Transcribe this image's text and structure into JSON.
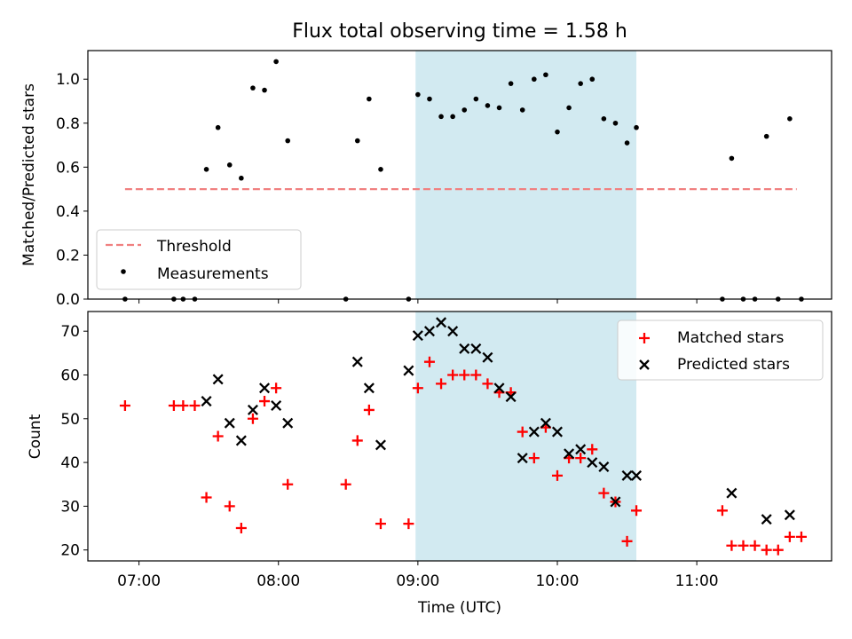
{
  "title": "Flux total observing time = 1.58 h",
  "colors": {
    "threshold": "#f08080",
    "measurement": "#000000",
    "matched": "#ff0000",
    "predicted": "#000000",
    "shade": "#add8e6"
  },
  "chart_data": [
    {
      "type": "scatter",
      "ylabel": "Matched/Predicted stars",
      "ylim": [
        0,
        1.13
      ],
      "yticks": [
        0.0,
        0.2,
        0.4,
        0.6,
        0.8,
        1.0
      ],
      "ytick_labels": [
        "0.0",
        "0.2",
        "0.4",
        "0.6",
        "0.8",
        "1.0"
      ],
      "shaded_interval": [
        "08:59",
        "10:34"
      ],
      "legend": {
        "position": "lower-left",
        "entries": [
          "Threshold",
          "Measurements"
        ]
      },
      "series": [
        {
          "name": "Threshold",
          "style": "dashed-line",
          "x": [
            "06:54",
            "11:43"
          ],
          "y": [
            0.5,
            0.5
          ]
        },
        {
          "name": "Measurements",
          "style": "dot",
          "x": [
            "06:54",
            "07:15",
            "07:19",
            "07:24",
            "07:29",
            "07:34",
            "07:39",
            "07:44",
            "07:49",
            "07:54",
            "07:59",
            "08:04",
            "08:29",
            "08:34",
            "08:39",
            "08:44",
            "08:56",
            "09:00",
            "09:05",
            "09:10",
            "09:15",
            "09:20",
            "09:25",
            "09:30",
            "09:35",
            "09:40",
            "09:45",
            "09:50",
            "09:55",
            "10:00",
            "10:05",
            "10:10",
            "10:15",
            "10:20",
            "10:25",
            "10:30",
            "10:34",
            "11:11",
            "11:15",
            "11:20",
            "11:25",
            "11:30",
            "11:35",
            "11:40",
            "11:45"
          ],
          "y": [
            0.0,
            0.0,
            0.0,
            0.0,
            0.59,
            0.78,
            0.61,
            0.55,
            0.96,
            0.95,
            1.08,
            0.72,
            0.0,
            0.72,
            0.91,
            0.59,
            0.0,
            0.93,
            0.91,
            0.83,
            0.83,
            0.86,
            0.91,
            0.88,
            0.87,
            0.98,
            0.86,
            1.0,
            1.02,
            0.76,
            0.87,
            0.98,
            1.0,
            0.82,
            0.8,
            0.71,
            0.78,
            0.0,
            0.64,
            0.0,
            0.0,
            0.74,
            0.0,
            0.82,
            0.0
          ]
        }
      ]
    },
    {
      "type": "scatter",
      "xlabel": "Time (UTC)",
      "ylabel": "Count",
      "ylim": [
        17.5,
        74.5
      ],
      "yticks": [
        20,
        30,
        40,
        50,
        60,
        70
      ],
      "ytick_labels": [
        "20",
        "30",
        "40",
        "50",
        "60",
        "70"
      ],
      "xlim": [
        "06:38",
        "11:58"
      ],
      "xticks": [
        "07:00",
        "08:00",
        "09:00",
        "10:00",
        "11:00"
      ],
      "shaded_interval": [
        "08:59",
        "10:34"
      ],
      "legend": {
        "position": "upper-right",
        "entries": [
          "Matched stars",
          "Predicted stars"
        ]
      },
      "series": [
        {
          "name": "Matched stars",
          "marker": "plus",
          "x": [
            "06:54",
            "07:15",
            "07:19",
            "07:24",
            "07:29",
            "07:34",
            "07:39",
            "07:44",
            "07:49",
            "07:54",
            "07:59",
            "08:04",
            "08:29",
            "08:34",
            "08:39",
            "08:44",
            "08:56",
            "09:00",
            "09:05",
            "09:10",
            "09:15",
            "09:20",
            "09:25",
            "09:30",
            "09:35",
            "09:40",
            "09:45",
            "09:50",
            "09:55",
            "10:00",
            "10:05",
            "10:10",
            "10:15",
            "10:20",
            "10:25",
            "10:30",
            "10:34",
            "11:11",
            "11:15",
            "11:20",
            "11:25",
            "11:30",
            "11:35",
            "11:40",
            "11:45"
          ],
          "y": [
            53,
            53,
            53,
            53,
            32,
            46,
            30,
            25,
            50,
            54,
            57,
            35,
            35,
            45,
            52,
            26,
            26,
            57,
            63,
            58,
            60,
            60,
            60,
            58,
            56,
            56,
            47,
            41,
            48,
            37,
            41,
            41,
            43,
            33,
            31,
            22,
            29,
            29,
            21,
            21,
            21,
            20,
            20,
            23,
            23
          ]
        },
        {
          "name": "Predicted stars",
          "marker": "x",
          "x": [
            "07:29",
            "07:34",
            "07:39",
            "07:44",
            "07:49",
            "07:54",
            "07:59",
            "08:04",
            "08:34",
            "08:39",
            "08:44",
            "08:56",
            "09:00",
            "09:05",
            "09:10",
            "09:15",
            "09:20",
            "09:25",
            "09:30",
            "09:35",
            "09:40",
            "09:45",
            "09:50",
            "09:55",
            "10:00",
            "10:05",
            "10:10",
            "10:15",
            "10:20",
            "10:25",
            "10:30",
            "10:34",
            "11:15",
            "11:30",
            "11:40"
          ],
          "y": [
            54,
            59,
            49,
            45,
            52,
            57,
            53,
            49,
            63,
            57,
            44,
            61,
            69,
            70,
            72,
            70,
            66,
            66,
            64,
            57,
            55,
            41,
            47,
            49,
            47,
            42,
            43,
            40,
            39,
            31,
            37,
            37,
            33,
            27,
            28
          ]
        }
      ]
    }
  ]
}
